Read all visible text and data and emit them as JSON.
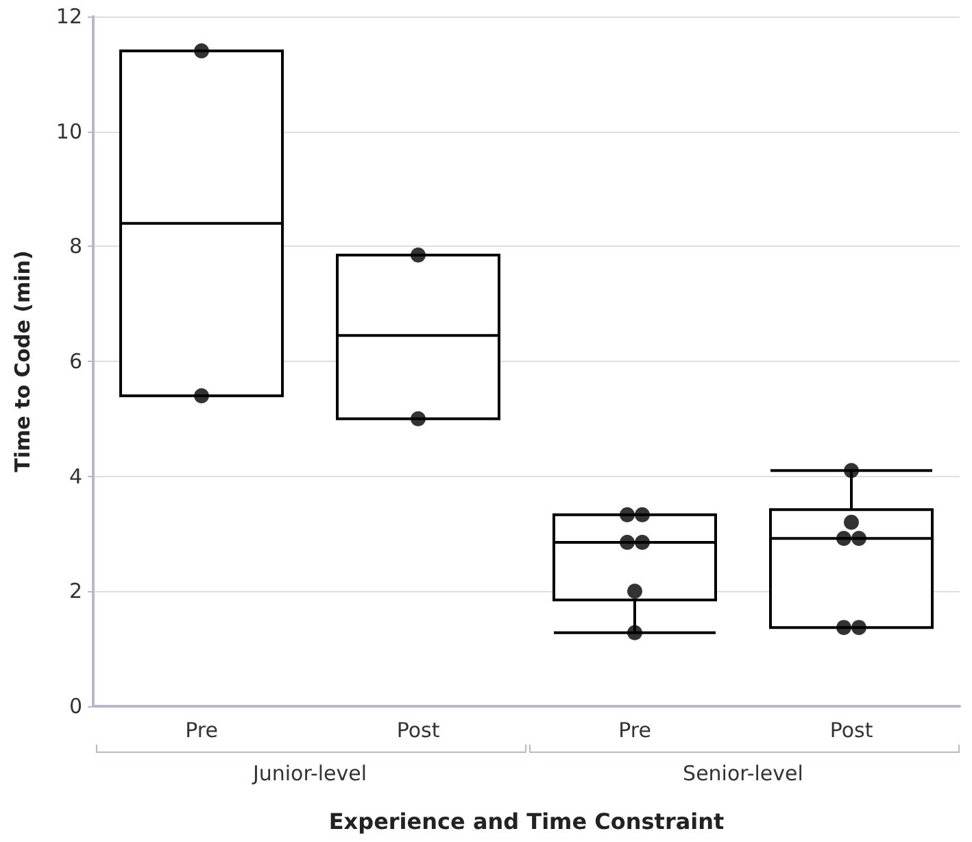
{
  "chart_data": {
    "type": "box",
    "xlabel": "Experience and Time Constraint",
    "ylabel": "Time to Code (min)",
    "categories": [
      "Pre",
      "Post",
      "Pre",
      "Post"
    ],
    "annotations": [
      "Junior-level",
      "Senior-level"
    ],
    "color": "#000000",
    "boxes": [
      {
        "low": 5.4,
        "q1": 5.4,
        "median": 8.4,
        "q3": 11.4,
        "high": 11.4
      },
      {
        "low": 5.0,
        "q1": 5.0,
        "median": 6.45,
        "q3": 7.85,
        "high": 7.85
      },
      {
        "low": 1.28,
        "q1": 1.85,
        "median": 2.85,
        "q3": 3.33,
        "high": 3.33
      },
      {
        "low": 1.37,
        "q1": 1.37,
        "median": 2.92,
        "q3": 3.42,
        "high": 4.1
      }
    ],
    "series": [
      {
        "type": "scatter",
        "color": "#000000",
        "values": [
          11.4,
          7.85,
          3.33,
          4.1
        ]
      },
      {
        "type": "scatter",
        "color": "#000000",
        "values": [
          5.4,
          5.0,
          3.33,
          3.2
        ]
      },
      {
        "type": "scatter",
        "color": "#000000",
        "values": [
          null,
          null,
          2.85,
          2.92
        ]
      },
      {
        "type": "scatter",
        "color": "#000000",
        "values": [
          null,
          null,
          2.85,
          2.92
        ]
      },
      {
        "type": "scatter",
        "color": "#000000",
        "values": [
          null,
          null,
          2.0,
          1.37
        ]
      },
      {
        "type": "scatter",
        "color": "#000000",
        "values": [
          null,
          null,
          1.28,
          1.37
        ]
      }
    ],
    "marker": "circle",
    "ylim": [
      0,
      12
    ],
    "yticks": [
      0,
      2,
      4,
      6,
      8,
      10,
      12
    ],
    "grid": "y"
  }
}
